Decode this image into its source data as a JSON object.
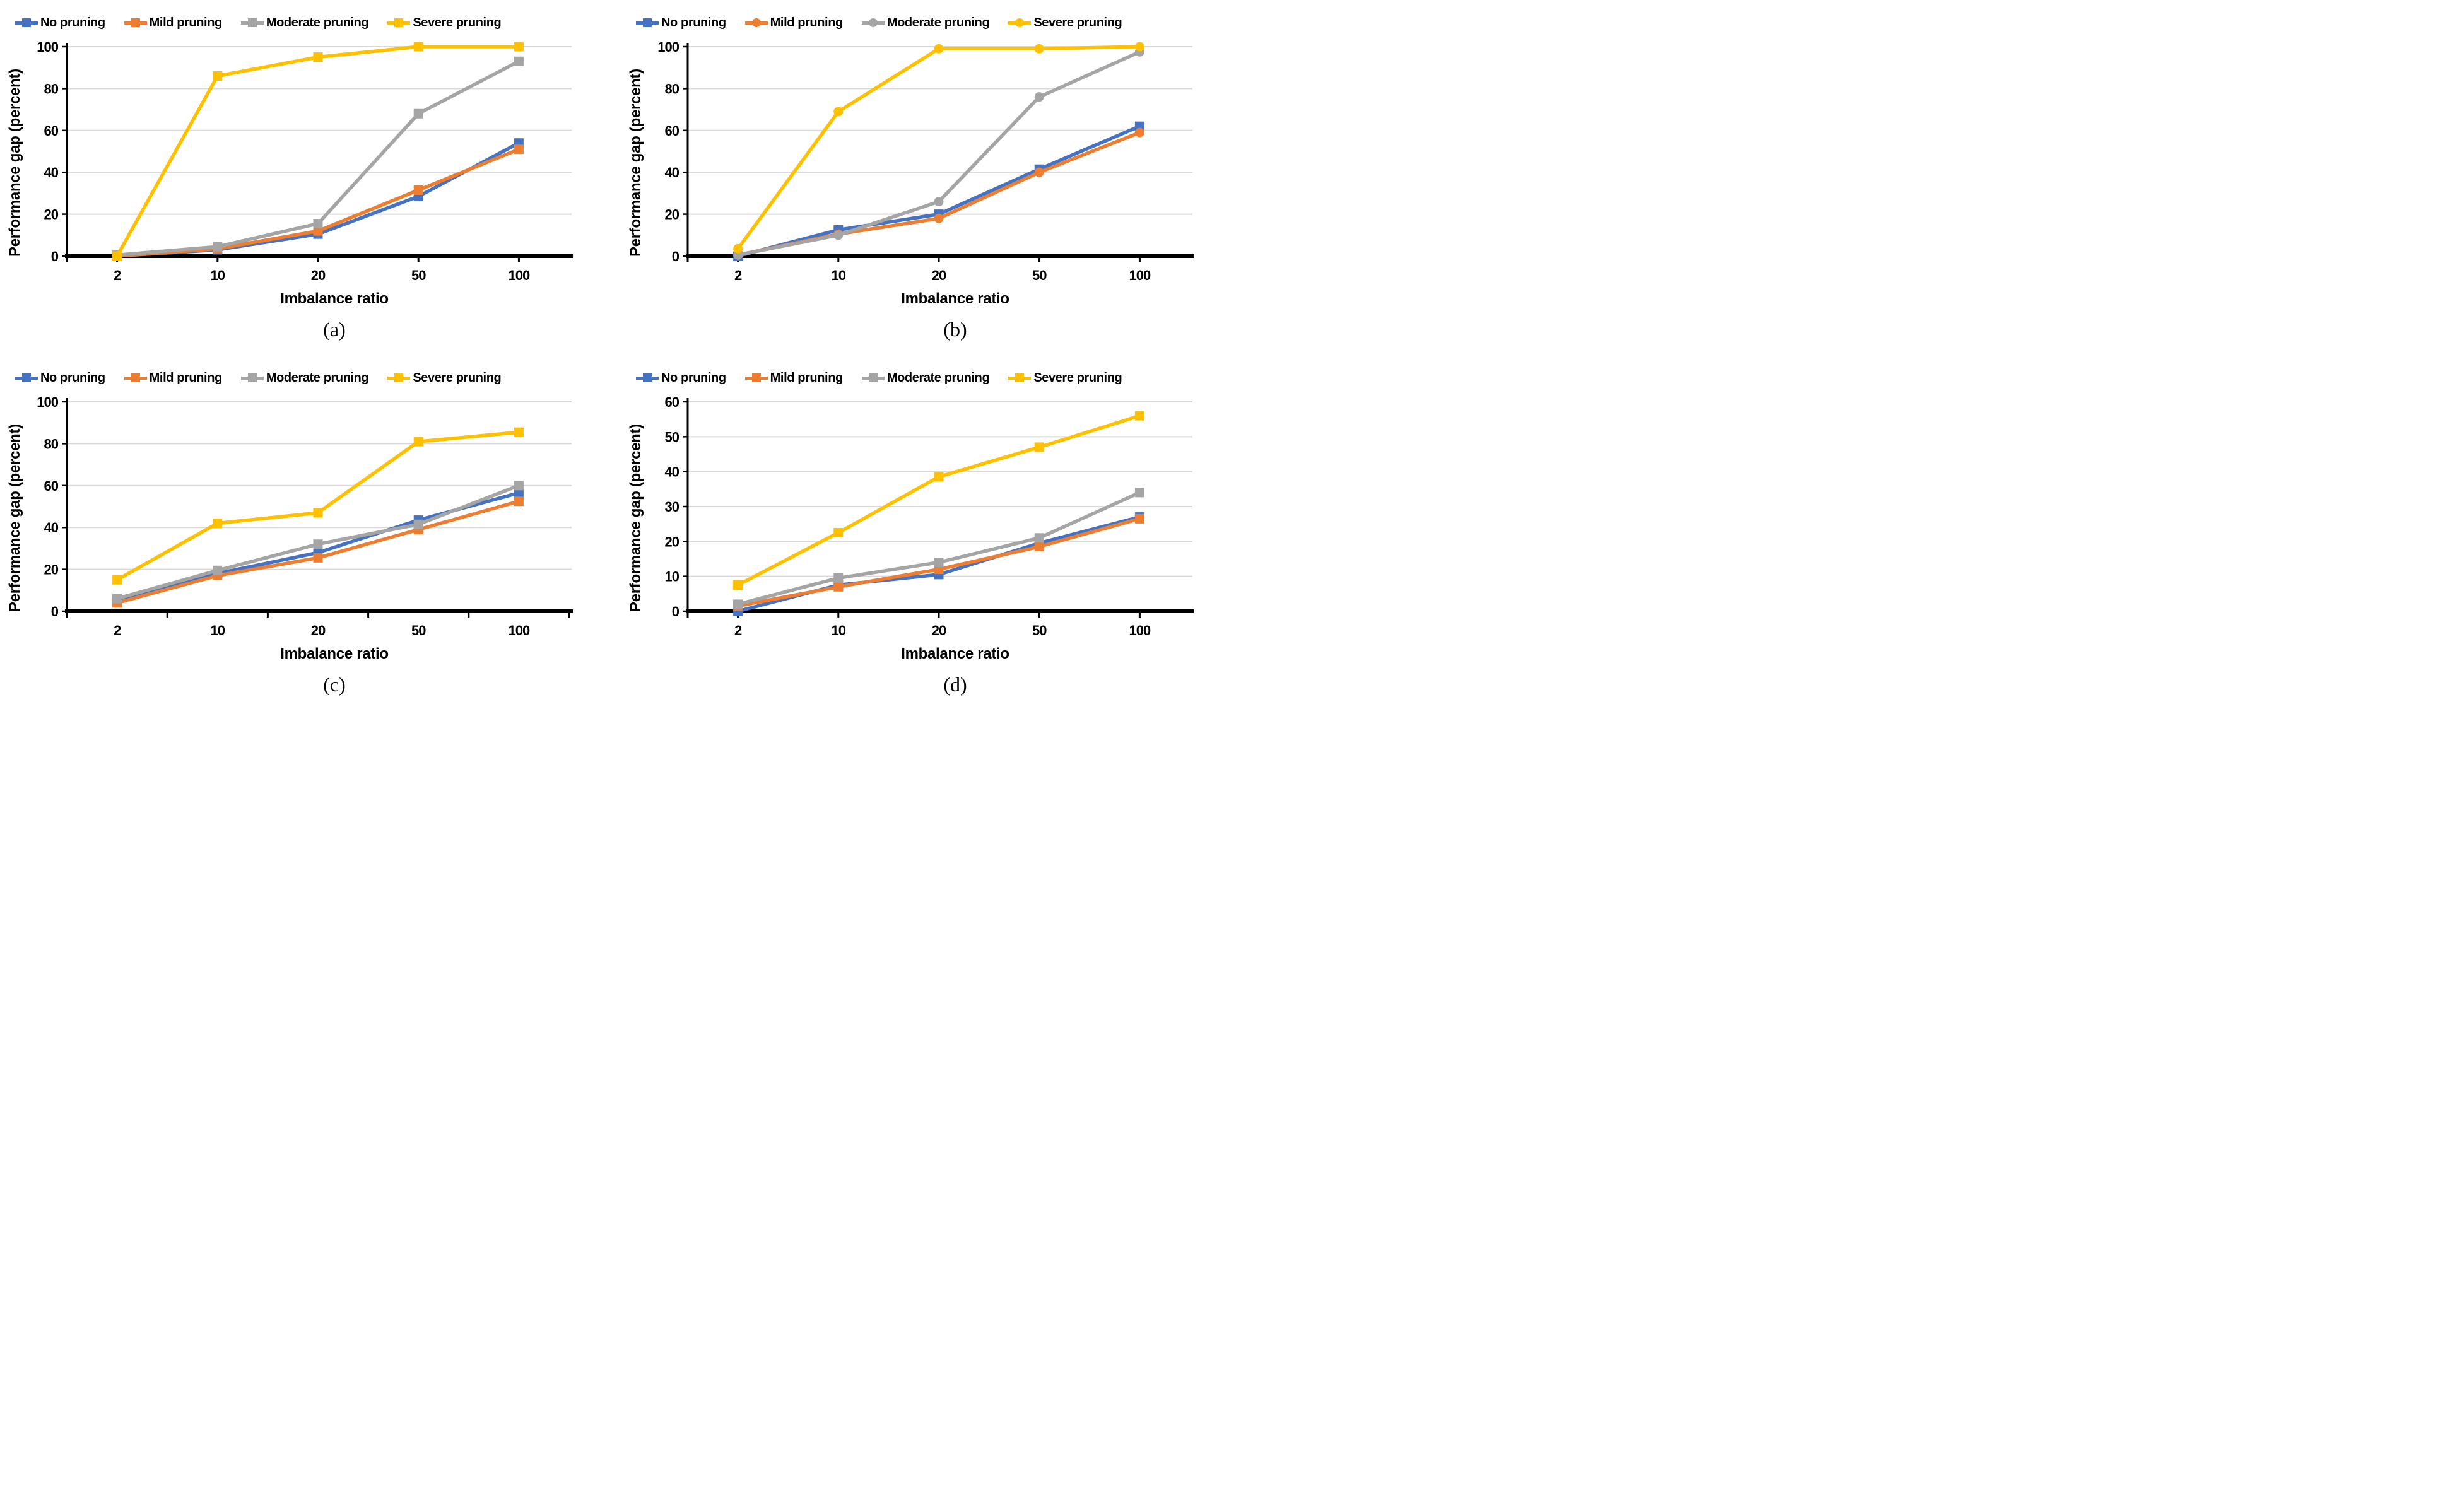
{
  "figure": {
    "xlabel": "Imbalance ratio",
    "ylabel": "Performance gap (percent)",
    "grid_color": "#D9D9D9",
    "axis_color": "#000000",
    "accent_colors": {
      "no_pruning": "#4472C4",
      "mild_pruning": "#ED7D31",
      "moderate_pruning": "#A5A5A5",
      "severe_pruning": "#FFC000"
    }
  },
  "chart_data": [
    {
      "type": "line",
      "caption": "(a)",
      "xlabel": "Imbalance ratio",
      "ylabel": "Performance gap (percent)",
      "categories": [
        "2",
        "10",
        "20",
        "50",
        "100"
      ],
      "ylim": [
        0,
        100
      ],
      "yticks": [
        0,
        20,
        40,
        60,
        80,
        100
      ],
      "xtick_mode": "center",
      "grid": true,
      "legend_position": "top",
      "series": [
        {
          "name": "No pruning",
          "color": "#4472C4",
          "marker": "square",
          "values": [
            0,
            3,
            10.5,
            28.5,
            54
          ]
        },
        {
          "name": "Mild pruning",
          "color": "#ED7D31",
          "marker": "square",
          "values": [
            0,
            3.5,
            12,
            31.5,
            51
          ]
        },
        {
          "name": "Moderate pruning",
          "color": "#A5A5A5",
          "marker": "square",
          "values": [
            0.5,
            4.5,
            15.5,
            68,
            93
          ]
        },
        {
          "name": "Severe pruning",
          "color": "#FFC000",
          "marker": "square",
          "values": [
            0,
            86,
            95,
            100,
            100
          ]
        }
      ]
    },
    {
      "type": "line",
      "caption": "(b)",
      "xlabel": "Imbalance ratio",
      "ylabel": "Performance gap (percent)",
      "categories": [
        "2",
        "10",
        "20",
        "50",
        "100"
      ],
      "ylim": [
        0,
        100
      ],
      "yticks": [
        0,
        20,
        40,
        60,
        80,
        100
      ],
      "xtick_mode": "center",
      "grid": true,
      "legend_position": "top",
      "series": [
        {
          "name": "No pruning",
          "color": "#4472C4",
          "marker": "square",
          "values": [
            0,
            12.5,
            20,
            41.5,
            62
          ]
        },
        {
          "name": "Mild pruning",
          "color": "#ED7D31",
          "marker": "circle",
          "values": [
            0.5,
            10.5,
            18,
            40,
            59
          ]
        },
        {
          "name": "Moderate pruning",
          "color": "#A5A5A5",
          "marker": "circle",
          "values": [
            0.5,
            10,
            26,
            76,
            97.5
          ]
        },
        {
          "name": "Severe pruning",
          "color": "#FFC000",
          "marker": "circle",
          "values": [
            3.5,
            69,
            99,
            99,
            100
          ]
        }
      ]
    },
    {
      "type": "line",
      "caption": "(c)",
      "xlabel": "Imbalance ratio",
      "ylabel": "Performance gap (percent)",
      "categories": [
        "2",
        "10",
        "20",
        "50",
        "100"
      ],
      "ylim": [
        0,
        100
      ],
      "yticks": [
        0,
        20,
        40,
        60,
        80,
        100
      ],
      "xtick_mode": "boundary",
      "grid": true,
      "legend_position": "top",
      "series": [
        {
          "name": "No pruning",
          "color": "#4472C4",
          "marker": "square",
          "values": [
            5.5,
            18,
            28,
            43.5,
            56.5
          ]
        },
        {
          "name": "Mild pruning",
          "color": "#ED7D31",
          "marker": "square",
          "values": [
            4,
            17,
            25.5,
            39,
            52.5
          ]
        },
        {
          "name": "Moderate pruning",
          "color": "#A5A5A5",
          "marker": "square",
          "values": [
            6,
            19.5,
            32,
            41.5,
            60
          ]
        },
        {
          "name": "Severe pruning",
          "color": "#FFC000",
          "marker": "square",
          "values": [
            15,
            42,
            47,
            81,
            85.5
          ]
        }
      ]
    },
    {
      "type": "line",
      "caption": "(d)",
      "xlabel": "Imbalance ratio",
      "ylabel": "Performance gap (percent)",
      "categories": [
        "2",
        "10",
        "20",
        "50",
        "100"
      ],
      "ylim": [
        0,
        60
      ],
      "yticks": [
        0,
        10,
        20,
        30,
        40,
        50,
        60
      ],
      "xtick_mode": "center",
      "grid": true,
      "legend_position": "top",
      "series": [
        {
          "name": "No pruning",
          "color": "#4472C4",
          "marker": "square",
          "values": [
            0,
            7.5,
            10.5,
            19.5,
            27
          ]
        },
        {
          "name": "Mild pruning",
          "color": "#ED7D31",
          "marker": "square",
          "values": [
            1.5,
            7,
            12,
            18.5,
            26.5
          ]
        },
        {
          "name": "Moderate pruning",
          "color": "#A5A5A5",
          "marker": "square",
          "values": [
            2,
            9.5,
            14,
            21,
            34
          ]
        },
        {
          "name": "Severe pruning",
          "color": "#FFC000",
          "marker": "square",
          "values": [
            7.5,
            22.5,
            38.5,
            47,
            56
          ]
        }
      ]
    }
  ]
}
